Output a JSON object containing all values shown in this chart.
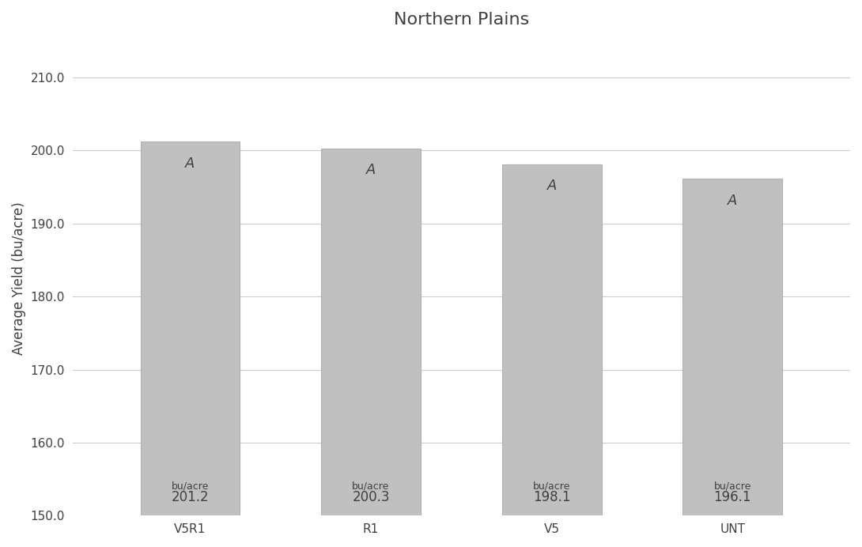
{
  "title": "Northern Plains",
  "categories": [
    "V5R1",
    "R1",
    "V5",
    "UNT"
  ],
  "values": [
    201.2,
    200.3,
    198.1,
    196.1
  ],
  "bar_color": "#c0c0c0",
  "bar_edge_color": "#b0b0b0",
  "ylabel": "Average Yield (bu/acre)",
  "ylim": [
    150.0,
    215.0
  ],
  "yticks": [
    150.0,
    160.0,
    170.0,
    180.0,
    190.0,
    200.0,
    210.0
  ],
  "significance_labels": [
    "A",
    "A",
    "A",
    "A"
  ],
  "value_labels": [
    "201.2",
    "200.3",
    "198.1",
    "196.1"
  ],
  "unit_label": "bu/acre",
  "title_fontsize": 16,
  "axis_label_fontsize": 12,
  "tick_fontsize": 11,
  "bar_label_fontsize": 12,
  "sig_label_fontsize": 13,
  "unit_label_fontsize": 9,
  "background_color": "#ffffff",
  "grid_color": "#cccccc",
  "text_color": "#404040",
  "bar_width": 0.55
}
